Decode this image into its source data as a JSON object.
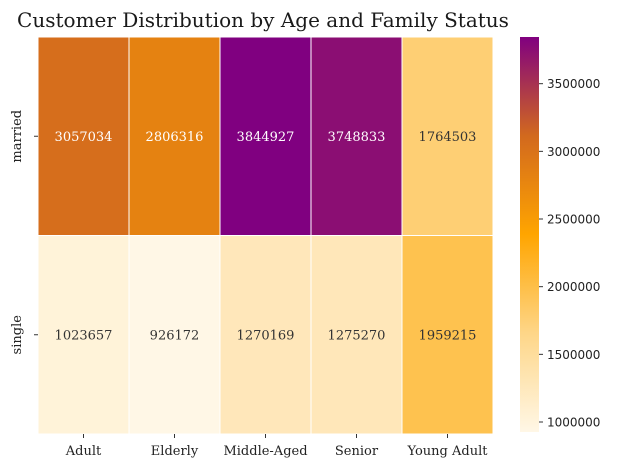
{
  "chart_data": {
    "type": "heatmap",
    "title": "Customer Distribution by Age and Family Status",
    "xlabel": "",
    "ylabel": "",
    "x_categories": [
      "Adult",
      "Elderly",
      "Middle-Aged",
      "Senior",
      "Young Adult"
    ],
    "y_categories": [
      "married",
      "single"
    ],
    "values": [
      [
        3057034,
        2806316,
        3844927,
        3748833,
        1764503
      ],
      [
        1023657,
        926172,
        1270169,
        1275270,
        1959215
      ]
    ],
    "colorbar": {
      "range": [
        926172,
        3844927
      ],
      "ticks": [
        1000000,
        1500000,
        2000000,
        2500000,
        3000000,
        3500000
      ],
      "tick_labels": [
        "1000000",
        "1500000",
        "2000000",
        "2500000",
        "3000000",
        "3500000"
      ]
    },
    "colormap": [
      "#fff7e6",
      "#fed688",
      "#ffa500",
      "#d2691e",
      "#800080"
    ],
    "annotated": true,
    "grid": false
  }
}
